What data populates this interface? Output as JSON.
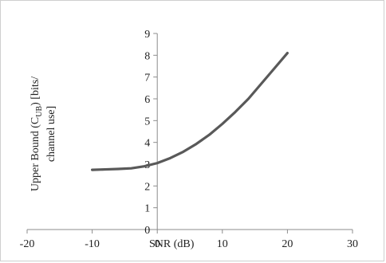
{
  "chart_data": {
    "type": "line",
    "title": "",
    "xlabel": "SNR (dB)",
    "ylabel": "Upper Bound (C",
    "ylabel_sub": "UB",
    "ylabel_line1_end": ") [bits/",
    "ylabel_line2": "channel use]",
    "xlim": [
      -20,
      30
    ],
    "ylim": [
      0,
      9
    ],
    "xticks": [
      -20,
      -10,
      0,
      10,
      20,
      30
    ],
    "yticks": [
      0,
      1,
      2,
      3,
      4,
      5,
      6,
      7,
      8,
      9
    ],
    "grid": false,
    "legend": "none",
    "series": [
      {
        "color": "#595959",
        "x": [
          -10,
          -8,
          -6,
          -4,
          -2,
          0,
          2,
          4,
          6,
          8,
          10,
          12,
          14,
          16,
          18,
          20
        ],
        "y": [
          2.74,
          2.76,
          2.78,
          2.81,
          2.9,
          3.05,
          3.28,
          3.57,
          3.93,
          4.35,
          4.85,
          5.4,
          6.0,
          6.7,
          7.4,
          8.1
        ]
      }
    ]
  }
}
